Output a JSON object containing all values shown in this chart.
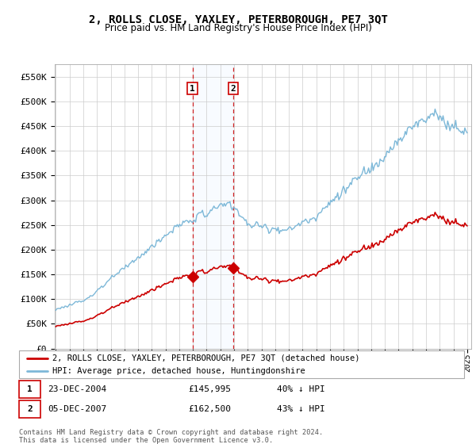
{
  "title": "2, ROLLS CLOSE, YAXLEY, PETERBOROUGH, PE7 3QT",
  "subtitle": "Price paid vs. HM Land Registry's House Price Index (HPI)",
  "ylim": [
    0,
    575000
  ],
  "yticks": [
    0,
    50000,
    100000,
    150000,
    200000,
    250000,
    300000,
    350000,
    400000,
    450000,
    500000,
    550000
  ],
  "ytick_labels": [
    "£0",
    "£50K",
    "£100K",
    "£150K",
    "£200K",
    "£250K",
    "£300K",
    "£350K",
    "£400K",
    "£450K",
    "£500K",
    "£550K"
  ],
  "sale1_yr": 2004.96,
  "sale1_price": 145995,
  "sale2_yr": 2007.92,
  "sale2_price": 162500,
  "hpi_color": "#7db8d8",
  "sale_color": "#cc0000",
  "shading_color": "#ddeeff",
  "legend_label_sale": "2, ROLLS CLOSE, YAXLEY, PETERBOROUGH, PE7 3QT (detached house)",
  "legend_label_hpi": "HPI: Average price, detached house, Huntingdonshire",
  "footer": "Contains HM Land Registry data © Crown copyright and database right 2024.\nThis data is licensed under the Open Government Licence v3.0.",
  "background_color": "#ffffff",
  "grid_color": "#cccccc",
  "xstart": 1995,
  "xend": 2025
}
